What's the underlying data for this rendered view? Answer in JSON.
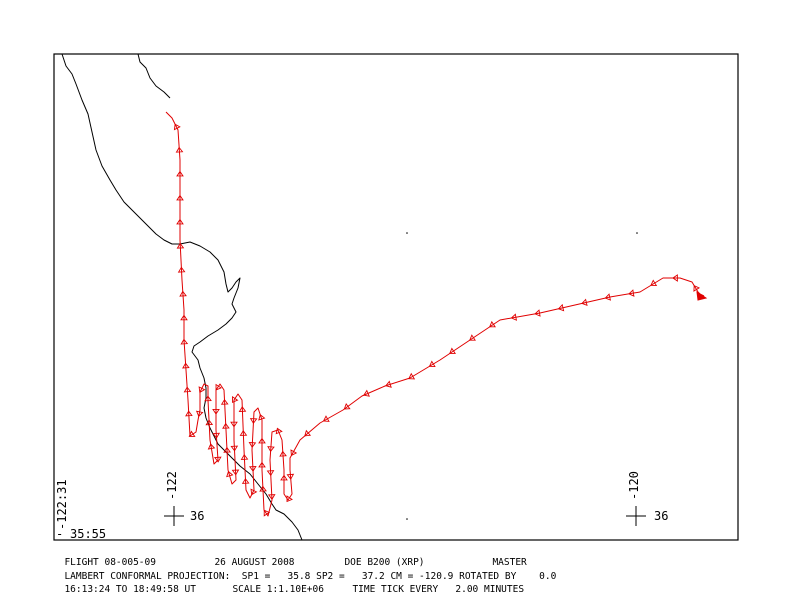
{
  "grid_labels": {
    "lon_west": "-122",
    "lat_a": "36",
    "lon_east": "-120",
    "lat_b": "36",
    "corner_lon": "-122:31",
    "corner_lat": "35:55"
  },
  "caption": {
    "line1": {
      "flight": "FLIGHT 08-005-09",
      "date": "26 AUGUST 2008",
      "aircraft": "DOE B200 (XRP)",
      "mode": "MASTER"
    },
    "line2": "LAMBERT CONFORMAL PROJECTION:  SP1 =   35.8 SP2 =   37.2 CM = -120.9 ROTATED BY    0.0",
    "line3": {
      "time_range": "16:13:24 TO 18:49:58 UT",
      "scale": "SCALE 1:1.10E+06",
      "tick": "TIME TICK EVERY   2.00 MINUTES"
    }
  },
  "colors": {
    "track": "#e00000",
    "coastline": "#000000",
    "frame": "#000000"
  }
}
